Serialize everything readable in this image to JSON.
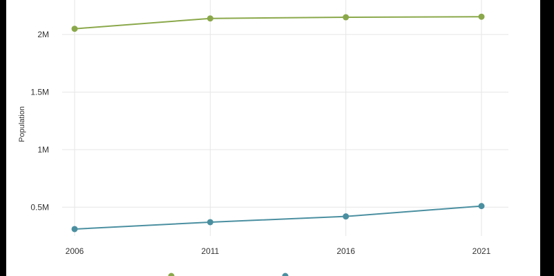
{
  "chart_data": {
    "type": "line",
    "title": "",
    "xlabel": "",
    "ylabel": "Population",
    "x": [
      "2006",
      "2011",
      "2016",
      "2021"
    ],
    "yticks": [
      "0.5M",
      "1M",
      "1.5M",
      "2M"
    ],
    "ylim": [
      0.25,
      2.3
    ],
    "grid": true,
    "legend_position": "bottom",
    "series": [
      {
        "name": "",
        "color": "#8aa84a",
        "values": [
          2.05,
          2.14,
          2.15,
          2.155
        ]
      },
      {
        "name": "",
        "color": "#4a8fa0",
        "values": [
          0.31,
          0.37,
          0.42,
          0.51
        ]
      }
    ]
  }
}
